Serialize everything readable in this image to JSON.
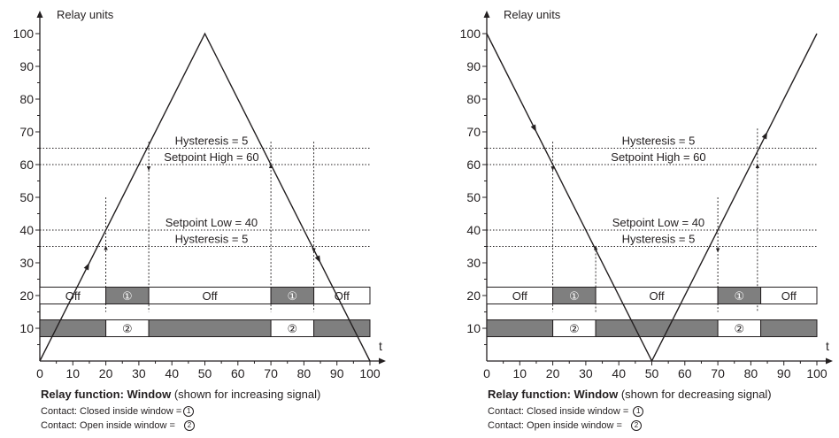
{
  "panels": [
    {
      "id": "left",
      "y_axis_label": "Relay units",
      "x_axis_label": "t",
      "y_ticks": [
        "10",
        "20",
        "30",
        "40",
        "50",
        "60",
        "70",
        "80",
        "90",
        "100"
      ],
      "x_ticks": [
        "0",
        "10",
        "20",
        "30",
        "40",
        "50",
        "60",
        "70",
        "80",
        "90",
        "100"
      ],
      "signal": "increasing",
      "labels": {
        "hyst_high": "Hysteresis = 5",
        "setpoint_high": "Setpoint High = 60",
        "setpoint_low": "Setpoint Low = 40",
        "hyst_low": "Hysteresis = 5"
      },
      "row20": [
        {
          "label": "Off",
          "from": 0,
          "to": 20,
          "filled": false
        },
        {
          "label": "①",
          "from": 20,
          "to": 33,
          "filled": true
        },
        {
          "label": "Off",
          "from": 33,
          "to": 70,
          "filled": false
        },
        {
          "label": "①",
          "from": 70,
          "to": 83,
          "filled": true
        },
        {
          "label": "Off",
          "from": 83,
          "to": 100,
          "filled": false
        }
      ],
      "row10": [
        {
          "label": "",
          "from": 0,
          "to": 20,
          "filled": true
        },
        {
          "label": "②",
          "from": 20,
          "to": 33,
          "filled": false
        },
        {
          "label": "",
          "from": 33,
          "to": 70,
          "filled": true
        },
        {
          "label": "②",
          "from": 70,
          "to": 83,
          "filled": false
        },
        {
          "label": "",
          "from": 83,
          "to": 100,
          "filled": true
        }
      ],
      "caption_bold": "Relay function: Window",
      "caption_rest": " (shown for increasing signal)",
      "contact1": "Contact: Closed inside window =",
      "contact2": "Contact: Open inside window =",
      "sym1": "1",
      "sym2": "2"
    },
    {
      "id": "right",
      "y_axis_label": "Relay units",
      "x_axis_label": "t",
      "y_ticks": [
        "10",
        "20",
        "30",
        "40",
        "50",
        "60",
        "70",
        "80",
        "90",
        "100"
      ],
      "x_ticks": [
        "0",
        "10",
        "20",
        "30",
        "40",
        "50",
        "60",
        "70",
        "80",
        "90",
        "100"
      ],
      "signal": "decreasing",
      "labels": {
        "hyst_high": "Hysteresis = 5",
        "setpoint_high": "Setpoint High = 60",
        "setpoint_low": "Setpoint Low = 40",
        "hyst_low": "Hysteresis = 5"
      },
      "row20": [
        {
          "label": "Off",
          "from": 0,
          "to": 20,
          "filled": false
        },
        {
          "label": "①",
          "from": 20,
          "to": 33,
          "filled": true
        },
        {
          "label": "Off",
          "from": 33,
          "to": 70,
          "filled": false
        },
        {
          "label": "①",
          "from": 70,
          "to": 83,
          "filled": true
        },
        {
          "label": "Off",
          "from": 83,
          "to": 100,
          "filled": false
        }
      ],
      "row10": [
        {
          "label": "",
          "from": 0,
          "to": 20,
          "filled": true
        },
        {
          "label": "②",
          "from": 20,
          "to": 33,
          "filled": false
        },
        {
          "label": "",
          "from": 33,
          "to": 70,
          "filled": true
        },
        {
          "label": "②",
          "from": 70,
          "to": 83,
          "filled": false
        },
        {
          "label": "",
          "from": 83,
          "to": 100,
          "filled": true
        }
      ],
      "caption_bold": "Relay function: Window",
      "caption_rest": " (shown for decreasing signal)",
      "contact1": "Contact: Closed inside window =",
      "contact2": "Contact: Open inside window =",
      "sym1": "1",
      "sym2": "2"
    }
  ],
  "colors": {
    "ink": "#231f20",
    "fill": "#7f7f7f"
  }
}
